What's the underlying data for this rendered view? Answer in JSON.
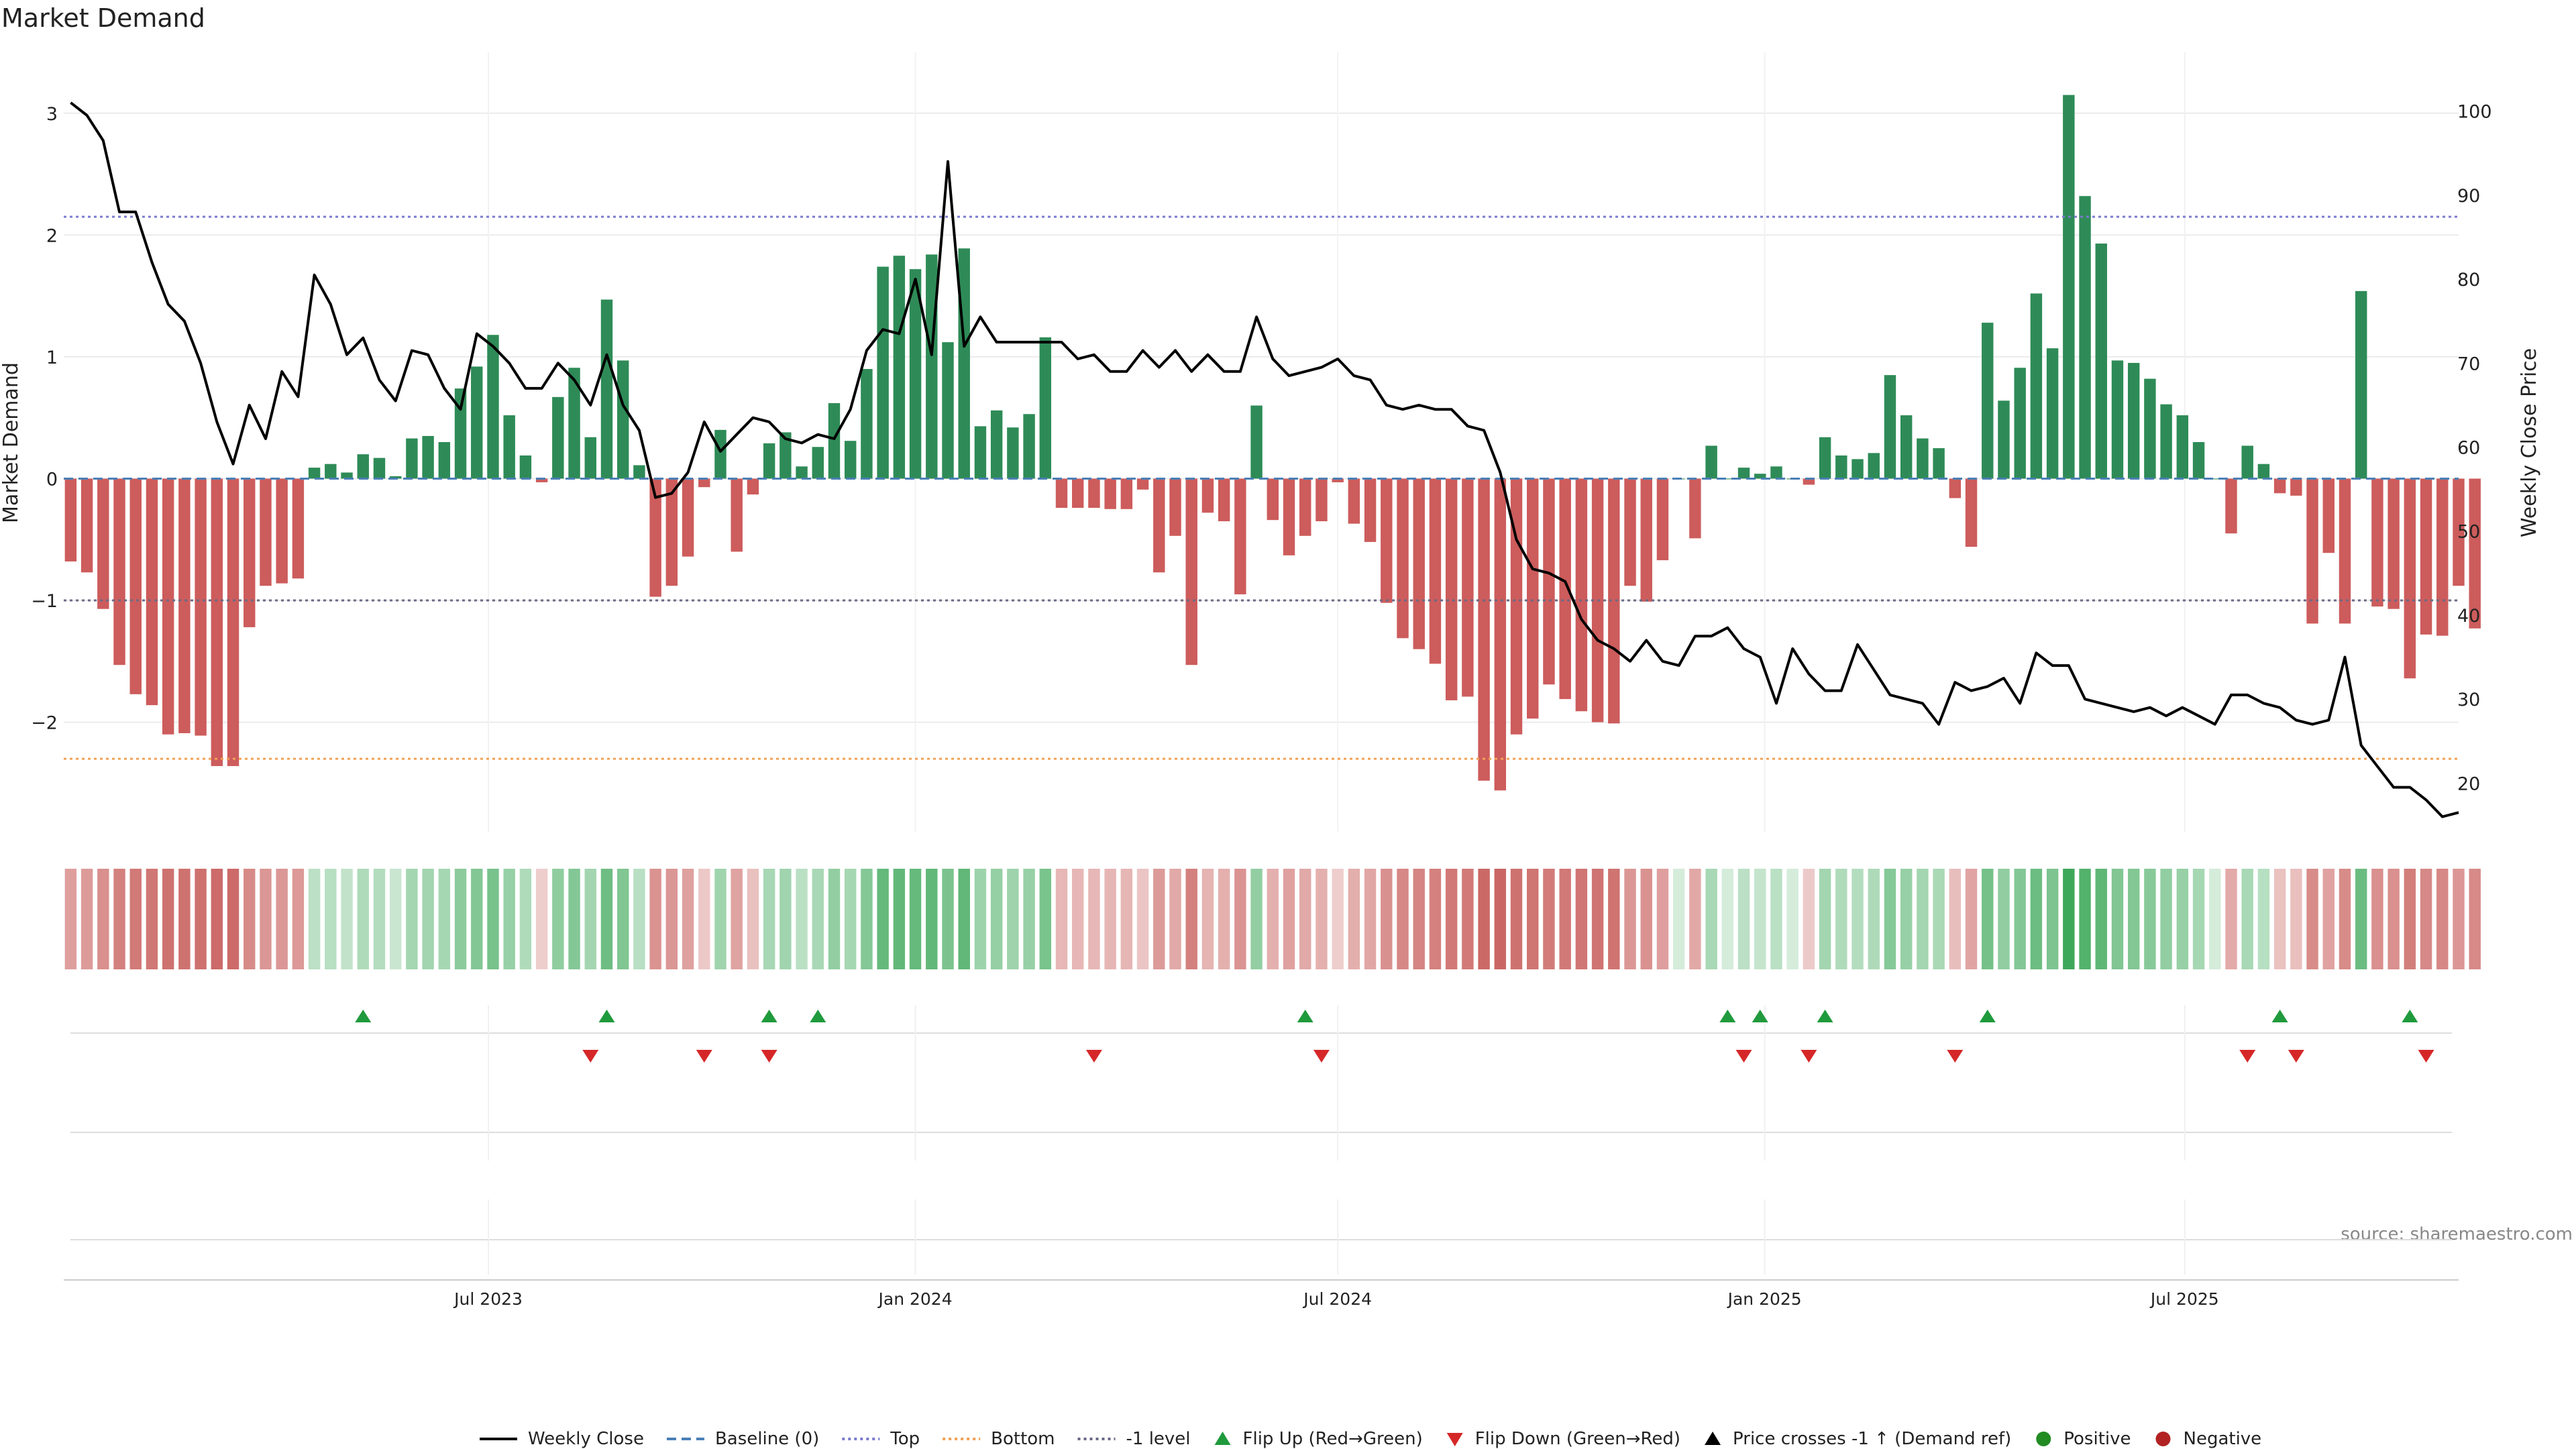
{
  "chart_data": {
    "type": "bar",
    "title": "Market Demand",
    "ylabel": "Market Demand",
    "y2label": "Weekly Close Price",
    "ylim": [
      -2.9,
      3.5
    ],
    "y2lim": [
      14.2,
      107
    ],
    "yticks": [
      3,
      2,
      1,
      0,
      -1,
      -2
    ],
    "yticklabels": [
      "3",
      "2",
      "1",
      "0",
      "−1",
      "−2"
    ],
    "y2ticks": [
      100,
      90,
      80,
      70,
      60,
      50,
      40,
      30,
      20
    ],
    "y2ticklabels": [
      "100",
      "90",
      "80",
      "70",
      "60",
      "50",
      "40",
      "30",
      "20"
    ],
    "x_start": "2023-01-02",
    "x_step_days": 7,
    "x_range": [
      "2022-12-30",
      "2025-10-27"
    ],
    "xticks": [
      {
        "date": "2023-07-01",
        "label": "Jul 2023"
      },
      {
        "date": "2024-01-01",
        "label": "Jan 2024"
      },
      {
        "date": "2024-07-01",
        "label": "Jul 2024"
      },
      {
        "date": "2025-01-01",
        "label": "Jan 2025"
      },
      {
        "date": "2025-07-01",
        "label": "Jul 2025"
      }
    ],
    "reference_lines": [
      {
        "name": "Top",
        "value": 2.15,
        "color": "#7b7bd0"
      },
      {
        "name": "-1 level",
        "value": -1.0,
        "color": "#6a6a86"
      },
      {
        "name": "Bottom",
        "value": -2.3,
        "color": "#f2a154"
      },
      {
        "name": "Baseline (0)",
        "value": 0,
        "color": "#4a7fb5"
      }
    ],
    "colors": {
      "positive": "#2e8b57",
      "negative": "#cd5c5c",
      "price": "#000000",
      "flip_up": "#1f9a3c",
      "flip_down": "#d62728",
      "legend_positive": "#228b22",
      "legend_negative": "#b22222"
    },
    "demand": [
      -0.68,
      -0.77,
      -1.07,
      -1.53,
      -1.77,
      -1.86,
      -2.1,
      -2.09,
      -2.11,
      -2.36,
      -2.36,
      -1.22,
      -0.88,
      -0.86,
      -0.82,
      0.09,
      0.12,
      0.05,
      0.2,
      0.17,
      0.02,
      0.33,
      0.35,
      0.3,
      0.74,
      0.92,
      1.18,
      0.52,
      0.19,
      -0.03,
      0.67,
      0.91,
      0.34,
      1.47,
      0.97,
      0.11,
      -0.97,
      -0.88,
      -0.64,
      -0.07,
      0.4,
      -0.6,
      -0.13,
      0.29,
      0.38,
      0.1,
      0.26,
      0.62,
      0.31,
      0.9,
      1.74,
      1.83,
      1.72,
      1.84,
      1.12,
      1.89,
      0.43,
      0.56,
      0.42,
      0.53,
      1.16,
      -0.24,
      -0.24,
      -0.24,
      -0.25,
      -0.25,
      -0.09,
      -0.77,
      -0.47,
      -1.53,
      -0.28,
      -0.35,
      -0.95,
      0.6,
      -0.34,
      -0.63,
      -0.47,
      -0.35,
      -0.03,
      -0.37,
      -0.52,
      -1.02,
      -1.31,
      -1.4,
      -1.52,
      -1.82,
      -1.79,
      -2.48,
      -2.56,
      -2.1,
      -1.97,
      -1.69,
      -1.81,
      -1.91,
      -2.0,
      -2.01,
      -0.88,
      -1.01,
      -0.67,
      0.0,
      -0.49,
      0.27,
      0.0,
      0.09,
      0.04,
      0.1,
      0.0,
      -0.05,
      0.34,
      0.19,
      0.16,
      0.21,
      0.85,
      0.52,
      0.33,
      0.25,
      -0.16,
      -0.56,
      1.28,
      0.64,
      0.91,
      1.52,
      1.07,
      3.15,
      2.32,
      1.93,
      0.97,
      0.95,
      0.82,
      0.61,
      0.52,
      0.3,
      0.0,
      -0.45,
      0.27,
      0.12,
      -0.12,
      -0.14,
      -1.19,
      -0.61,
      -1.19,
      1.54,
      -1.05,
      -1.07,
      -1.64,
      -1.28,
      -1.29,
      -0.88,
      -1.23
    ],
    "price": [
      101,
      99.5,
      96.5,
      88,
      88,
      82,
      77,
      75,
      70,
      63,
      58,
      65,
      61,
      69,
      66,
      80.5,
      77,
      71,
      73,
      68,
      65.5,
      71.5,
      71,
      67,
      64.5,
      73.5,
      72,
      70,
      67,
      67,
      70,
      68,
      65,
      71,
      65,
      62,
      54,
      54.5,
      57,
      63,
      59.5,
      61.5,
      63.5,
      63,
      61,
      60.5,
      61.5,
      61,
      64.5,
      71.5,
      74,
      73.5,
      80,
      71,
      94,
      72,
      75.5,
      72.5,
      72.5,
      72.5,
      72.5,
      72.5,
      70.5,
      71,
      69,
      69,
      71.5,
      69.5,
      71.5,
      69,
      71,
      69,
      69,
      75.5,
      70.5,
      68.5,
      69,
      69.5,
      70.5,
      68.5,
      68,
      65,
      64.5,
      65,
      64.5,
      64.5,
      62.5,
      62,
      57,
      49,
      45.5,
      45,
      44,
      39.5,
      37,
      36,
      34.5,
      37,
      34.5,
      34,
      37.5,
      37.5,
      38.5,
      36,
      35,
      29.5,
      36,
      33,
      31,
      31,
      36.5,
      33.5,
      30.5,
      30,
      29.5,
      27,
      32,
      31,
      31.5,
      32.5,
      29.5,
      35.5,
      34,
      34,
      30,
      29.5,
      29,
      28.5,
      29,
      28,
      29,
      28,
      27,
      30.5,
      30.5,
      29.5,
      29,
      27.5,
      27,
      27.5,
      35,
      24.5,
      22,
      19.5,
      19.5,
      18,
      16,
      16.5
    ],
    "flip_up_dates": [
      "2023-05-08",
      "2023-08-21",
      "2023-10-30",
      "2023-11-20",
      "2024-06-17",
      "2024-12-16",
      "2024-12-30",
      "2025-01-27",
      "2025-04-07",
      "2025-08-11",
      "2025-10-06"
    ],
    "flip_down_dates": [
      "2023-08-14",
      "2023-10-02",
      "2023-10-30",
      "2024-03-18",
      "2024-06-24",
      "2024-12-23",
      "2025-01-20",
      "2025-03-24",
      "2025-07-28",
      "2025-08-18",
      "2025-10-13"
    ],
    "legend": [
      {
        "label": "Weekly Close",
        "kind": "line"
      },
      {
        "label": "Baseline (0)",
        "kind": "dash"
      },
      {
        "label": "Top",
        "kind": "dotline"
      },
      {
        "label": "Bottom",
        "kind": "dotline-orange"
      },
      {
        "label": "-1 level",
        "kind": "dotline-gray"
      },
      {
        "label": "Flip Up (Red→Green)",
        "kind": "tri-up"
      },
      {
        "label": "Flip Down (Green→Red)",
        "kind": "tri-down"
      },
      {
        "label": "Price crosses -1 ↑ (Demand ref)",
        "kind": "tri-up-black"
      },
      {
        "label": "Positive",
        "kind": "dot-green"
      },
      {
        "label": "Negative",
        "kind": "dot-red"
      }
    ],
    "legend_position": "bottom-center",
    "grid": true,
    "source": "source: sharemaestro.com"
  }
}
